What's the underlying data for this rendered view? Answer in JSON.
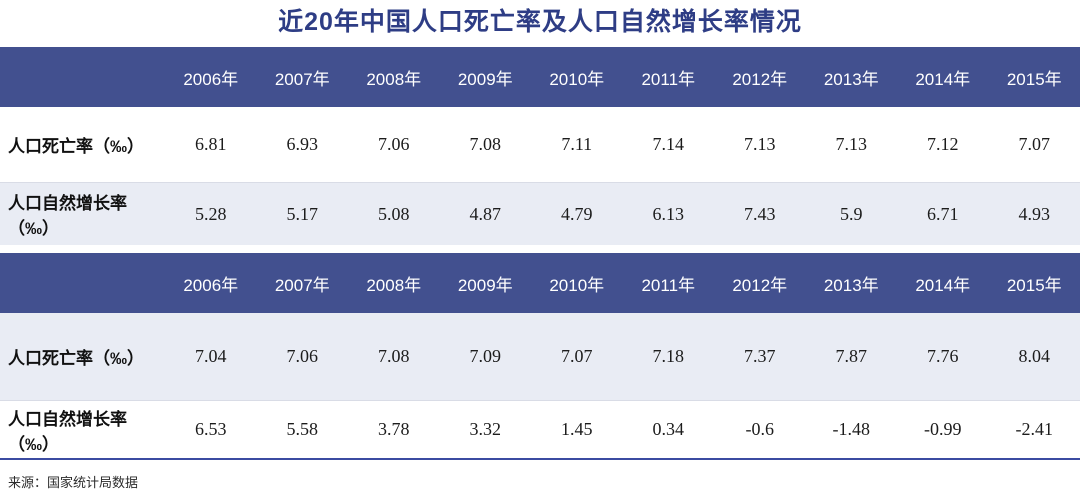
{
  "title": "近20年中国人口死亡率及人口自然增长率情况",
  "colors": {
    "header_band_bg": "#42508f",
    "shaded_row_bg": "#e9ecf4",
    "title_color": "#2e3d85",
    "bottom_rule_color": "#3b4ba1",
    "header_text_color": "#ffffff"
  },
  "chart_data": {
    "type": "table",
    "title": "近20年中国人口死亡率及人口自然增长率情况",
    "tables": [
      {
        "years": [
          "2006年",
          "2007年",
          "2008年",
          "2009年",
          "2010年",
          "2011年",
          "2012年",
          "2013年",
          "2014年",
          "2015年"
        ],
        "rows": [
          {
            "label": "人口死亡率（‰）",
            "shaded": false,
            "height_class": "row-h1",
            "values": [
              "6.81",
              "6.93",
              "7.06",
              "7.08",
              "7.11",
              "7.14",
              "7.13",
              "7.13",
              "7.12",
              "7.07"
            ]
          },
          {
            "label": "人口自然增长率（‰）",
            "shaded": true,
            "height_class": "row-h2",
            "values": [
              "5.28",
              "5.17",
              "5.08",
              "4.87",
              "4.79",
              "6.13",
              "7.43",
              "5.9",
              "6.71",
              "4.93"
            ]
          }
        ]
      },
      {
        "years": [
          "2006年",
          "2007年",
          "2008年",
          "2009年",
          "2010年",
          "2011年",
          "2012年",
          "2013年",
          "2014年",
          "2015年"
        ],
        "rows": [
          {
            "label": "人口死亡率（‰）",
            "shaded": true,
            "height_class": "row-h3",
            "values": [
              "7.04",
              "7.06",
              "7.08",
              "7.09",
              "7.07",
              "7.18",
              "7.37",
              "7.87",
              "7.76",
              "8.04"
            ]
          },
          {
            "label": "人口自然增长率（‰）",
            "shaded": false,
            "height_class": "row-h4",
            "values": [
              "6.53",
              "5.58",
              "3.78",
              "3.32",
              "1.45",
              "0.34",
              "-0.6",
              "-1.48",
              "-0.99",
              "-2.41"
            ]
          }
        ]
      }
    ]
  },
  "footer": {
    "source": "来源：国家统计局数据"
  }
}
